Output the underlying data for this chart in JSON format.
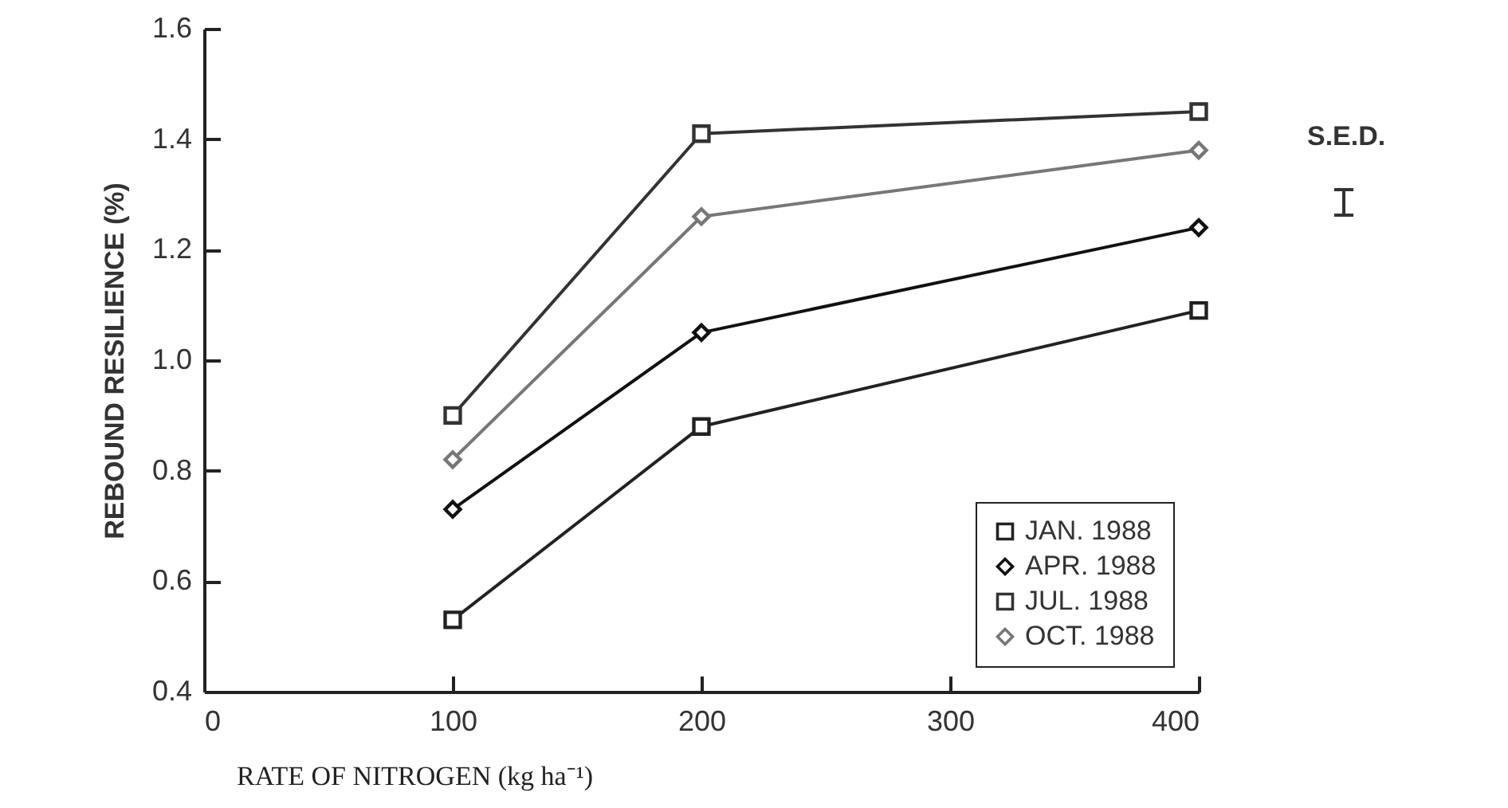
{
  "chart_data": {
    "type": "line",
    "xlabel": "RATE OF NITROGEN (kg ha⁻¹)",
    "ylabel": "REBOUND RESILIENCE (%)",
    "x": [
      100,
      200,
      400
    ],
    "series": [
      {
        "name": "JAN. 1988",
        "color": "#222222",
        "marker": "square",
        "values": [
          0.53,
          0.88,
          1.09
        ]
      },
      {
        "name": "APR. 1988",
        "color": "#111111",
        "marker": "diamond",
        "values": [
          0.73,
          1.05,
          1.24
        ]
      },
      {
        "name": "JUL. 1988",
        "color": "#333333",
        "marker": "square",
        "values": [
          0.9,
          1.41,
          1.45
        ]
      },
      {
        "name": "OCT. 1988",
        "color": "#777777",
        "marker": "diamond",
        "values": [
          0.82,
          1.26,
          1.38
        ]
      }
    ],
    "xlim": [
      0,
      400
    ],
    "xticks": [
      0,
      100,
      200,
      300,
      400
    ],
    "ylim": [
      0.4,
      1.6
    ],
    "yticks": [
      0.4,
      0.6,
      0.8,
      {
        "value": 1,
        "label": "1.0"
      },
      1.2,
      1.4,
      1.6
    ],
    "grid": false,
    "legend": "bottom right",
    "annotations": [
      "S.E.D."
    ]
  }
}
